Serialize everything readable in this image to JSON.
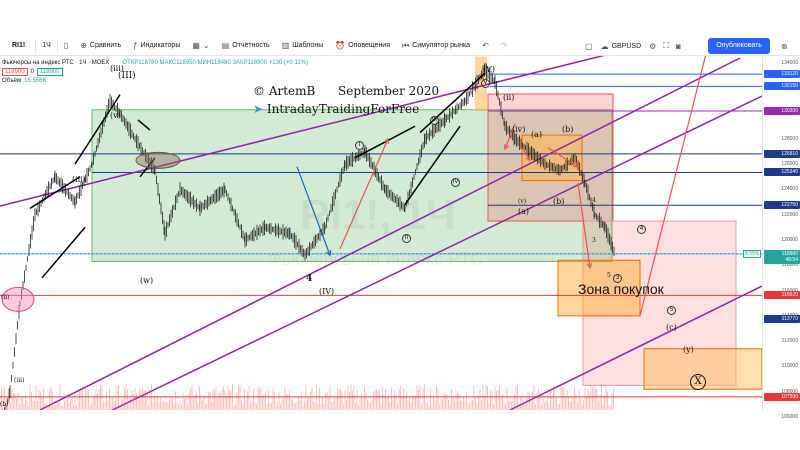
{
  "toolbar": {
    "symbol": "RI1!",
    "interval": "1Ч",
    "compare": "Сравнить",
    "indicators": "Индикаторы",
    "reports": "Отчётность",
    "templates": "Шаблоны",
    "alerts": "Оповещения",
    "replay": "Симулятор рынка",
    "currency": "GBPUSD",
    "publish": "Опубликовать"
  },
  "legend": {
    "title": "Фьючерсы на индекс РТС · 1Ч · MOEX",
    "ohlc": "ОТКР118780  МАКС118950  МИН118480  ЗАКР118900  +130 (+0.11%)",
    "price1": "118900",
    "price2": "0",
    "price3": "118900",
    "volume_label": "Объём",
    "volume_value": "16.556K"
  },
  "overlay": {
    "author": "ArtemB",
    "date": "September 2020",
    "channel": "IntradayTraidingForFree",
    "buy_zone": "Зона покупок",
    "watermark_symbol": "RI1!, 1Ч",
    "watermark_name": "Фьючерсы на индекс РТС"
  },
  "waves": {
    "iii_top": "(iii)",
    "III": "(III)",
    "v_left": "(v)",
    "w": "(w)",
    "IV": "(IV)",
    "four_main": "4",
    "V": "(V)",
    "ii_top": "(ii)",
    "iv_top": "(iv)",
    "a": "(a)",
    "b": "(b)",
    "a_big": "(a)",
    "b_small": "(b)",
    "v_mid": "(v)",
    "iii_wave": "(iii)",
    "c_small": "(c)",
    "c_big": "(c)",
    "y": "(y)",
    "X": "X",
    "ii_left": "(ii)",
    "iii_left": "(iii)",
    "b_left": "(b)",
    "v_small": "(v)",
    "iv_circ": "(iv)",
    "three": "3",
    "four_small": "4",
    "five_small": "5"
  },
  "circles": {
    "c1": "I",
    "c2": "II",
    "c3": "III",
    "c4": "IV",
    "c5": "V",
    "c6": "4",
    "c7": "3",
    "c8": "5",
    "c9": "1"
  },
  "price_axis": {
    "ticks": [
      "134000",
      "132000",
      "130000",
      "128000",
      "126000",
      "124000",
      "122000",
      "120000",
      "118000",
      "116000",
      "114000",
      "112000",
      "110000",
      "108000",
      "106000"
    ],
    "pills": [
      {
        "label": "133120",
        "color": "#2962ff"
      },
      {
        "label": "132150",
        "color": "#2962ff"
      },
      {
        "label": "130200",
        "color": "#9c27b0"
      },
      {
        "label": "126810",
        "color": "#1e3a8a"
      },
      {
        "label": "125340",
        "color": "#1e3a8a"
      },
      {
        "label": "122750",
        "color": "#1e3a8a"
      },
      {
        "label": "118900",
        "color": "#26a69a"
      },
      {
        "label": "48:54",
        "color": "#26a69a"
      },
      {
        "label": "113770",
        "color": "#1e3a8a"
      },
      {
        "label": "115620",
        "color": "#e53935"
      },
      {
        "label": "107590",
        "color": "#e53935"
      }
    ],
    "pct": "8.59%"
  }
}
